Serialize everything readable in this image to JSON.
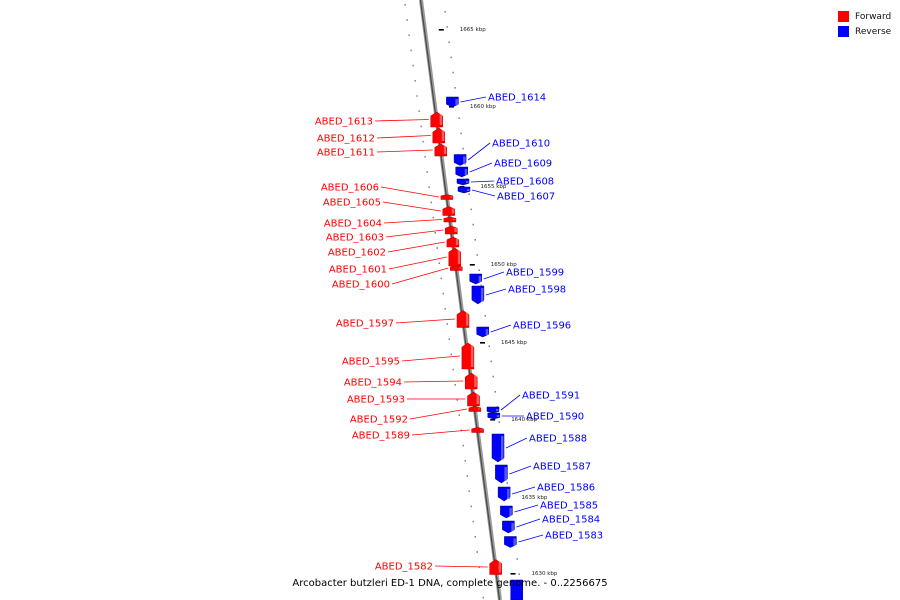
{
  "legend": {
    "forward_label": "Forward",
    "reverse_label": "Reverse",
    "forward_color": "#ff0000",
    "reverse_color": "#0000ff"
  },
  "caption": "Arcobacter butzleri ED-1 DNA, complete genome. - 0..2256675",
  "scale_labels": [
    "1665 kbp",
    "1660 kbp",
    "1655 kbp",
    "1650 kbp",
    "1645 kbp",
    "1640 kbp",
    "1635 kbp",
    "1630 kbp"
  ],
  "forward_genes": [
    "ABED_1613",
    "ABED_1612",
    "ABED_1611",
    "ABED_1606",
    "ABED_1605",
    "ABED_1604",
    "ABED_1603",
    "ABED_1602",
    "ABED_1601",
    "ABED_1600",
    "ABED_1597",
    "ABED_1595",
    "ABED_1594",
    "ABED_1593",
    "ABED_1592",
    "ABED_1589",
    "ABED_1582"
  ],
  "reverse_genes": [
    "ABED_1614",
    "ABED_1610",
    "ABED_1609",
    "ABED_1608",
    "ABED_1607",
    "ABED_1599",
    "ABED_1598",
    "ABED_1596",
    "ABED_1591",
    "ABED_1590",
    "ABED_1588",
    "ABED_1587",
    "ABED_1586",
    "ABED_1585",
    "ABED_1584",
    "ABED_1583"
  ]
}
